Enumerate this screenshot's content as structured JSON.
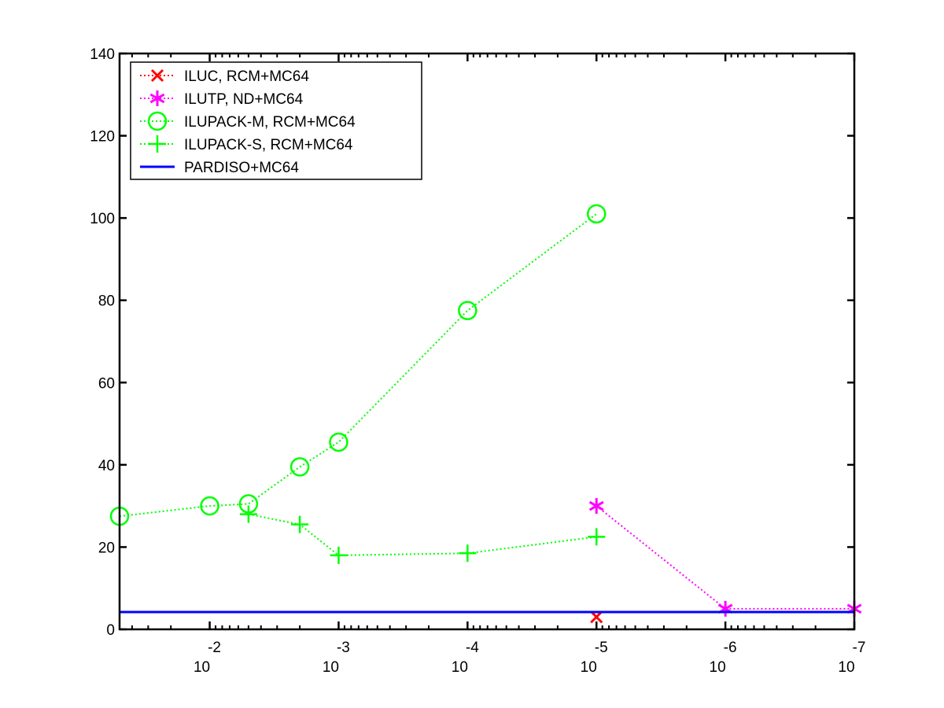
{
  "chart_data": {
    "type": "line",
    "title": "",
    "xlabel": "",
    "ylabel": "",
    "x_scale": "log-reversed",
    "xlim": [
      0.05,
      1e-07
    ],
    "ylim": [
      0,
      140
    ],
    "grid": false,
    "legend_position": "top-left",
    "x_ticks": [
      {
        "value": 0.01,
        "base": "10",
        "exp": "-2"
      },
      {
        "value": 0.001,
        "base": "10",
        "exp": "-3"
      },
      {
        "value": 0.0001,
        "base": "10",
        "exp": "-4"
      },
      {
        "value": 1e-05,
        "base": "10",
        "exp": "-5"
      },
      {
        "value": 1e-06,
        "base": "10",
        "exp": "-6"
      },
      {
        "value": 1e-07,
        "base": "10",
        "exp": "-7"
      }
    ],
    "y_ticks": [
      0,
      20,
      40,
      60,
      80,
      100,
      120,
      140
    ],
    "series": [
      {
        "name": "ILUC, RCM+MC64",
        "color": "#ff0000",
        "marker": "x",
        "line": "dotted",
        "points": [
          {
            "x": 1e-05,
            "y": 3
          }
        ]
      },
      {
        "name": "ILUTP,  ND+MC64",
        "color": "#ff00ff",
        "marker": "asterisk",
        "line": "dotted",
        "points": [
          {
            "x": 1e-05,
            "y": 30
          },
          {
            "x": 1e-06,
            "y": 5
          },
          {
            "x": 1e-07,
            "y": 5
          }
        ]
      },
      {
        "name": "ILUPACK-M, RCM+MC64",
        "color": "#00ff00",
        "marker": "circle",
        "line": "dotted",
        "points": [
          {
            "x": 0.05,
            "y": 27.5
          },
          {
            "x": 0.01,
            "y": 30
          },
          {
            "x": 0.005,
            "y": 30.5
          },
          {
            "x": 0.002,
            "y": 39.5
          },
          {
            "x": 0.001,
            "y": 45.5
          },
          {
            "x": 0.0001,
            "y": 77.5
          },
          {
            "x": 1e-05,
            "y": 101
          }
        ]
      },
      {
        "name": "ILUPACK-S, RCM+MC64",
        "color": "#00ff00",
        "marker": "plus",
        "line": "dotted",
        "points": [
          {
            "x": 0.005,
            "y": 28
          },
          {
            "x": 0.002,
            "y": 25.5
          },
          {
            "x": 0.001,
            "y": 18
          },
          {
            "x": 0.0001,
            "y": 18.5
          },
          {
            "x": 1e-05,
            "y": 22.5
          }
        ]
      },
      {
        "name": "PARDISO+MC64",
        "color": "#0000ff",
        "marker": "none",
        "line": "solid",
        "points": [
          {
            "x": 0.05,
            "y": 4.2
          },
          {
            "x": 1e-07,
            "y": 4.2
          }
        ]
      }
    ]
  }
}
